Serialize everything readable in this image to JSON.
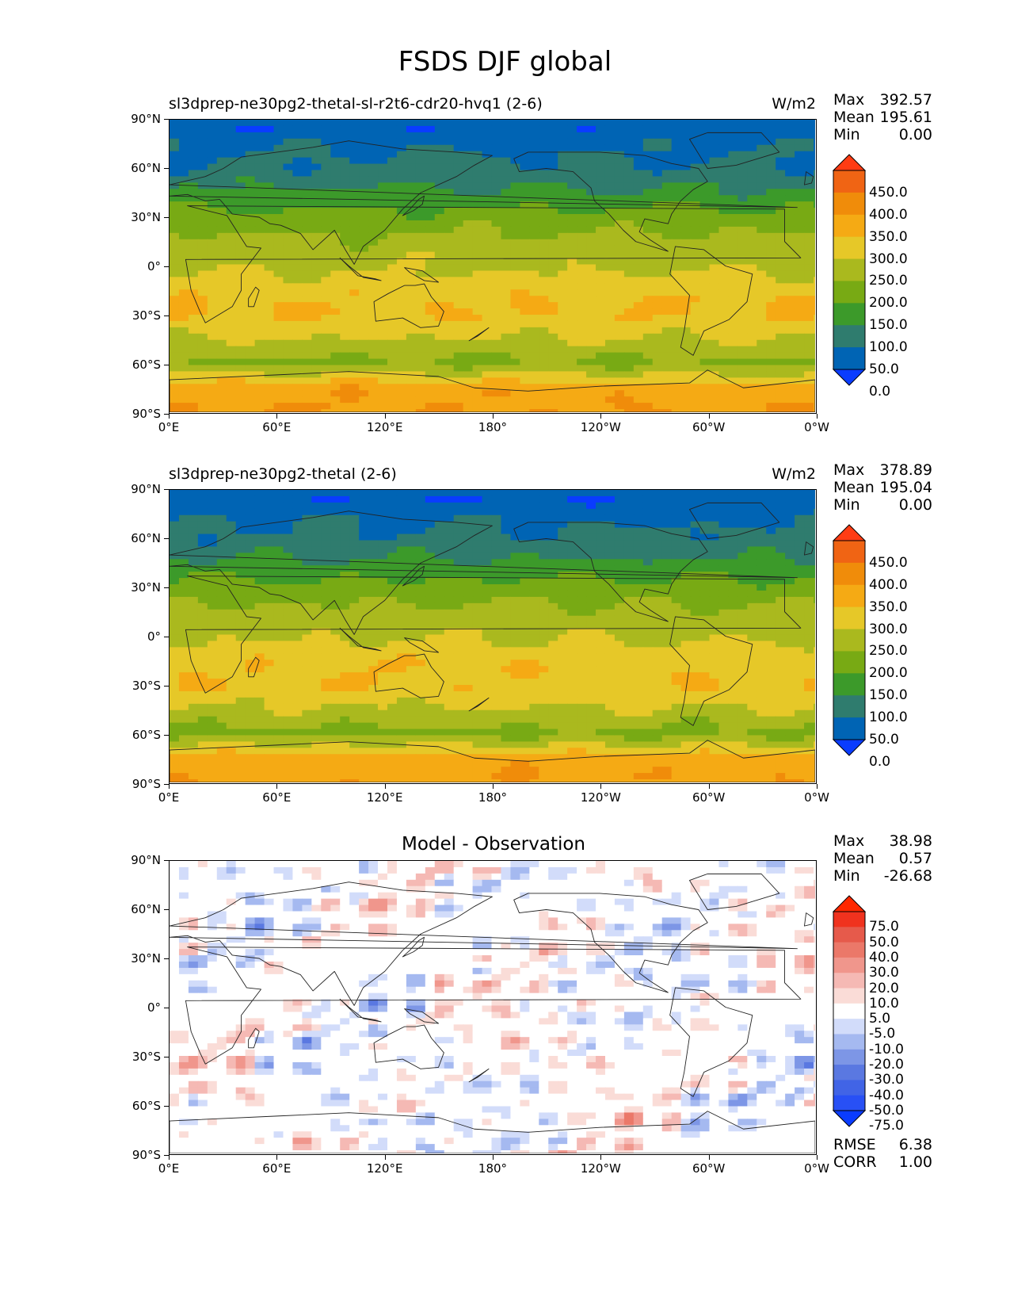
{
  "figure": {
    "title": "FSDS DJF global"
  },
  "panels": [
    {
      "subtitle": "sl3dprep-ne30pg2-thetal-sl-r2t6-cdr20-hvq1 (2-6)",
      "units": "W/m2",
      "stats": {
        "max_label": "Max",
        "max": "392.57",
        "mean_label": "Mean",
        "mean": "195.61",
        "min_label": "Min",
        "min": "0.00"
      },
      "colorbar": [
        "450.0",
        "400.0",
        "350.0",
        "300.0",
        "250.0",
        "200.0",
        "150.0",
        "100.0",
        "50.0",
        "0.0"
      ]
    },
    {
      "subtitle": "sl3dprep-ne30pg2-thetal (2-6)",
      "units": "W/m2",
      "stats": {
        "max_label": "Max",
        "max": "378.89",
        "mean_label": "Mean",
        "mean": "195.04",
        "min_label": "Min",
        "min": "0.00"
      },
      "colorbar": [
        "450.0",
        "400.0",
        "350.0",
        "300.0",
        "250.0",
        "200.0",
        "150.0",
        "100.0",
        "50.0",
        "0.0"
      ]
    },
    {
      "title": "Model - Observation",
      "stats": {
        "max_label": "Max",
        "max": "38.98",
        "mean_label": "Mean",
        "mean": "0.57",
        "min_label": "Min",
        "min": "-26.68"
      },
      "colorbar": [
        "75.0",
        "50.0",
        "40.0",
        "30.0",
        "20.0",
        "10.0",
        "5.0",
        "-5.0",
        "-10.0",
        "-20.0",
        "-30.0",
        "-40.0",
        "-50.0",
        "-75.0"
      ],
      "rmse_label": "RMSE",
      "rmse": "6.38",
      "corr_label": "CORR",
      "corr": "1.00"
    }
  ],
  "axes": {
    "y_ticks": [
      "90°N",
      "60°N",
      "30°N",
      "0°",
      "30°S",
      "60°S",
      "90°S"
    ],
    "x_ticks": [
      "0°E",
      "60°E",
      "120°E",
      "180°",
      "120°W",
      "60°W",
      "0°W"
    ]
  },
  "chart_data": [
    {
      "type": "heatmap",
      "subtitle": "sl3dprep-ne30pg2-thetal-sl-r2t6-cdr20-hvq1 (2-6)",
      "units": "W/m2",
      "xlim": [
        0,
        360
      ],
      "ylim": [
        -90,
        90
      ],
      "levels": [
        0,
        50,
        100,
        150,
        200,
        250,
        300,
        350,
        400,
        450
      ],
      "colors": [
        "#0a3cff",
        "#0064b4",
        "#2f7c6e",
        "#3c9a2a",
        "#78aa14",
        "#aab91e",
        "#e6c828",
        "#f5aa14",
        "#f08c0a",
        "#f06414",
        "#ff3c14"
      ],
      "zonal_mean_by_lat": {
        "lat": [
          87,
          75,
          60,
          45,
          30,
          15,
          0,
          -15,
          -30,
          -45,
          -60,
          -75,
          -87
        ],
        "value": [
          0,
          40,
          60,
          110,
          170,
          215,
          240,
          285,
          300,
          250,
          190,
          330,
          345
        ]
      },
      "max": 392.57,
      "mean": 195.61,
      "min": 0.0
    },
    {
      "type": "heatmap",
      "subtitle": "sl3dprep-ne30pg2-thetal (2-6)",
      "units": "W/m2",
      "xlim": [
        0,
        360
      ],
      "ylim": [
        -90,
        90
      ],
      "levels": [
        0,
        50,
        100,
        150,
        200,
        250,
        300,
        350,
        400,
        450
      ],
      "colors": [
        "#0a3cff",
        "#0064b4",
        "#2f7c6e",
        "#3c9a2a",
        "#78aa14",
        "#aab91e",
        "#e6c828",
        "#f5aa14",
        "#f08c0a",
        "#f06414",
        "#ff3c14"
      ],
      "zonal_mean_by_lat": {
        "lat": [
          87,
          75,
          60,
          45,
          30,
          15,
          0,
          -15,
          -30,
          -45,
          -60,
          -75,
          -87
        ],
        "value": [
          0,
          40,
          60,
          110,
          170,
          215,
          240,
          285,
          295,
          245,
          185,
          325,
          340
        ]
      },
      "max": 378.89,
      "mean": 195.04,
      "min": 0.0
    },
    {
      "type": "heatmap",
      "title": "Model - Observation",
      "xlim": [
        0,
        360
      ],
      "ylim": [
        -90,
        90
      ],
      "levels": [
        -75,
        -50,
        -40,
        -30,
        -20,
        -10,
        -5,
        5,
        10,
        20,
        30,
        40,
        50,
        75
      ],
      "colors": [
        "#0a3cff",
        "#2850f5",
        "#4164e6",
        "#5a78e1",
        "#7d96e6",
        "#a5b9f0",
        "#d2dcfa",
        "#ffffff",
        "#fadcd7",
        "#f5b9b4",
        "#f0968c",
        "#eb7869",
        "#e65a4b",
        "#f0321e",
        "#ff2800"
      ],
      "max": 38.98,
      "mean": 0.57,
      "min": -26.68,
      "rmse": 6.38,
      "corr": 1.0
    }
  ]
}
